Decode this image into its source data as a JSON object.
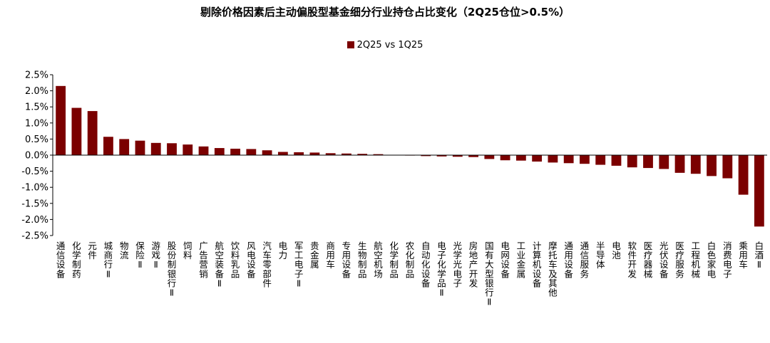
{
  "chart_data": {
    "type": "bar",
    "title": "剔除价格因素后主动偏股型基金细分行业持仓占比变化（2Q25仓位>0.5%）",
    "legend_position": "top-center",
    "series": [
      {
        "name": "2Q25 vs 1Q25",
        "color": "#7b0000",
        "values": [
          2.15,
          1.47,
          1.37,
          0.57,
          0.5,
          0.45,
          0.38,
          0.37,
          0.33,
          0.27,
          0.22,
          0.2,
          0.19,
          0.15,
          0.1,
          0.09,
          0.08,
          0.06,
          0.05,
          0.04,
          0.03,
          0.01,
          -0.01,
          -0.03,
          -0.04,
          -0.05,
          -0.06,
          -0.12,
          -0.16,
          -0.17,
          -0.2,
          -0.23,
          -0.25,
          -0.27,
          -0.3,
          -0.33,
          -0.38,
          -0.4,
          -0.43,
          -0.55,
          -0.58,
          -0.65,
          -0.72,
          -1.23,
          -2.22
        ]
      }
    ],
    "categories": [
      "通信设备",
      "化学制药",
      "元件",
      "城商行Ⅱ",
      "物流",
      "保险Ⅱ",
      "游戏Ⅱ",
      "股份制银行Ⅱ",
      "饲料",
      "广告营销",
      "航空装备Ⅱ",
      "饮料乳品",
      "风电设备",
      "汽车零部件",
      "电力",
      "军工电子Ⅱ",
      "贵金属",
      "商用车",
      "专用设备",
      "生物制品",
      "航空机场",
      "化学制品",
      "农化制品",
      "自动化设备",
      "电子化学品Ⅱ",
      "光学光电子",
      "房地产开发",
      "国有大型银行Ⅱ",
      "电网设备",
      "工业金属",
      "计算机设备",
      "摩托车及其他",
      "通用设备",
      "通信服务",
      "半导体",
      "电池",
      "软件开发",
      "医疗器械",
      "光伏设备",
      "医疗服务",
      "工程机械",
      "白色家电",
      "消费电子",
      "乘用车",
      "白酒Ⅱ"
    ],
    "ylim": [
      -2.5,
      2.5
    ],
    "yticks": [
      "2.5%",
      "2.0%",
      "1.5%",
      "1.0%",
      "0.5%",
      "0.0%",
      "-0.5%",
      "-1.0%",
      "-1.5%",
      "-2.0%",
      "-2.5%"
    ],
    "grid": false
  }
}
